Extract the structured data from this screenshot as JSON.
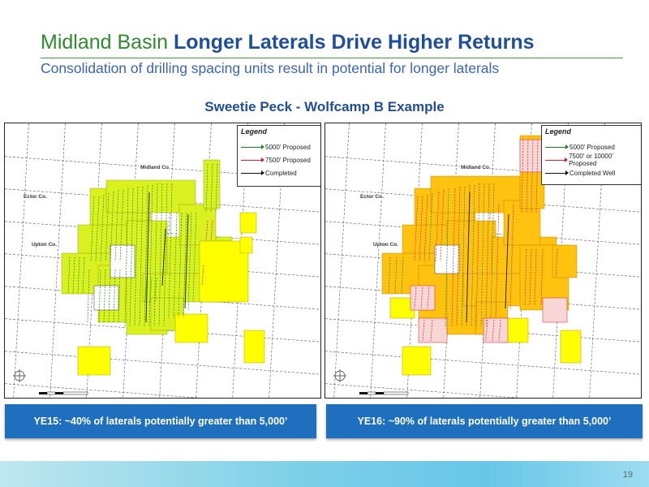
{
  "slide": {
    "title_prefix": "Midland Basin",
    "title_highlight": "Longer Laterals Drive Higher Returns",
    "subtitle": "Consolidation of drilling spacing units result in potential for longer laterals",
    "example_title": "Sweetie Peck - Wolfcamp B Example",
    "page_number": "19"
  },
  "colors": {
    "title_green": "#2e8b2e",
    "title_blue": "#1f4e9a",
    "acreage_yellow": "#ffff00",
    "acreage_yellow_green": "#d9f21f",
    "acreage_orange": "#ffc20e",
    "lateral_green": "#1a8a1a",
    "lateral_red": "#e02020",
    "caption_blue": "#1f6fbf"
  },
  "maps": {
    "left": {
      "legend_title": "Legend",
      "legend_items": [
        {
          "label": "5000' Proposed",
          "color": "#1a8a1a"
        },
        {
          "label": "7500' Proposed",
          "color": "#e02020"
        },
        {
          "label": "Completed",
          "color": "#111111"
        }
      ],
      "counties": [
        "Midland Co.",
        "Ector Co.",
        "Upton Co."
      ],
      "caption": "YE15: ~40% of laterals potentially greater than 5,000’"
    },
    "right": {
      "legend_title": "Legend",
      "legend_items": [
        {
          "label": "5000' Proposed",
          "color": "#1a8a1a"
        },
        {
          "label": "7500' or 10000' Proposed",
          "color": "#e02020"
        },
        {
          "label": "Completed Well",
          "color": "#111111"
        }
      ],
      "counties": [
        "Midland Co.",
        "Ector Co.",
        "Upton Co."
      ],
      "caption": "YE16: ~90% of laterals potentially greater than 5,000’"
    }
  }
}
